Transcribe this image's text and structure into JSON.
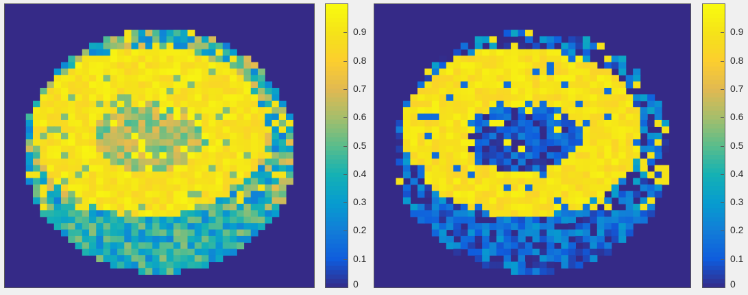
{
  "chart_data": [
    {
      "type": "heatmap",
      "colormap": "parula",
      "background_value": 0,
      "grid_size": [
        44,
        44
      ],
      "clim": [
        0,
        1
      ],
      "colorbar_ticks": [
        0,
        0.1,
        0.2,
        0.3,
        0.4,
        0.5,
        0.6,
        0.7,
        0.8,
        0.9
      ],
      "colorbar_tick_labels": [
        "0",
        "0.1",
        "0.2",
        "0.3",
        "0.4",
        "0.5",
        "0.6",
        "0.7",
        "0.8",
        "0.9"
      ],
      "regions": {
        "outer_disc_value": 0.5,
        "lower_band_value": 0.4,
        "bright_ring_value": 0.97,
        "inner_core_value": 0.62
      }
    },
    {
      "type": "heatmap",
      "colormap": "parula",
      "background_value": 0,
      "grid_size": [
        44,
        44
      ],
      "clim": [
        0,
        1
      ],
      "colorbar_ticks": [
        0,
        0.1,
        0.2,
        0.3,
        0.4,
        0.5,
        0.6,
        0.7,
        0.8,
        0.9
      ],
      "colorbar_tick_labels": [
        "0",
        "0.1",
        "0.2",
        "0.3",
        "0.4",
        "0.5",
        "0.6",
        "0.7",
        "0.8",
        "0.9"
      ],
      "regions": {
        "outer_disc_value": 0.12,
        "lower_band_value": 0.12,
        "bright_ring_value": 0.96,
        "inner_core_value": 0.1
      }
    }
  ]
}
